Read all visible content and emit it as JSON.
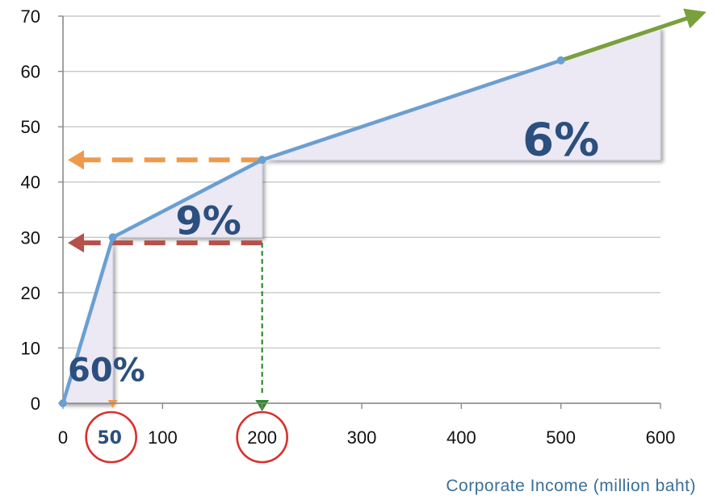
{
  "chart_data": {
    "type": "line",
    "xlabel": "Corporate Income (million baht)",
    "ylabel": "",
    "xlim": [
      0,
      600
    ],
    "ylim": [
      0,
      70
    ],
    "x_ticks": [
      0,
      50,
      100,
      200,
      300,
      400,
      500,
      600
    ],
    "y_ticks": [
      0,
      10,
      20,
      30,
      40,
      50,
      60,
      70
    ],
    "grid": "horizontal",
    "highlighted_ticks": [
      50,
      200
    ],
    "series": [
      {
        "name": "",
        "x": [
          0,
          50,
          200,
          500,
          600
        ],
        "y": [
          0,
          30,
          44,
          62,
          68
        ],
        "color": "#6a9fd0"
      }
    ],
    "bracket_rates": [
      {
        "label": "60%",
        "x_start": 0,
        "x_end": 50,
        "y_start": 0,
        "y_end": 30
      },
      {
        "label": "9%",
        "x_start": 50,
        "x_end": 200,
        "y_start": 30,
        "y_end": 44
      },
      {
        "label": "6%",
        "x_start": 200,
        "x_end": 600,
        "y_start": 44,
        "y_end": 68
      }
    ],
    "reference_lines": [
      {
        "kind": "horizontal",
        "y": 44,
        "x_from": 200,
        "color": "#ee9a4d"
      },
      {
        "kind": "horizontal",
        "y": 29,
        "x_from": 200,
        "color": "#b5504a"
      },
      {
        "kind": "vertical",
        "x": 200,
        "y_from": 29,
        "color": "#2c8a2c"
      }
    ],
    "colors": {
      "line": "#6a9fd0",
      "triangle_fill": "#ece8f4",
      "rate_text": "#2b4f7e",
      "circle": "#d9302c",
      "arrow_green": "#7aa03c"
    }
  }
}
